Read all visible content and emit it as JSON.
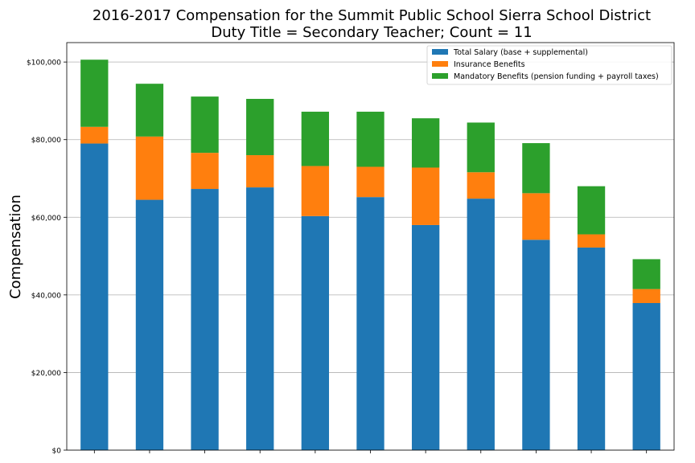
{
  "chart_data": {
    "type": "bar",
    "stacked": true,
    "title_line1": "2016-2017 Compensation for the Summit Public School Sierra School District",
    "title_line2": "Duty Title = Secondary Teacher; Count = 11",
    "ylabel": "Compensation",
    "ylim": [
      0,
      105000
    ],
    "yticks": [
      0,
      20000,
      40000,
      60000,
      80000,
      100000
    ],
    "ytick_labels": [
      "$0",
      "$20,000",
      "$40,000",
      "$60,000",
      "$80,000",
      "$100,000"
    ],
    "grid": "horizontal",
    "legend_position": "top-right",
    "categories": [
      "",
      "",
      "",
      "",
      "",
      "",
      "",
      "",
      "",
      "",
      ""
    ],
    "series": [
      {
        "name": "Total Salary (base + supplemental)",
        "color": "#1f77b4",
        "values": [
          79000,
          64500,
          67300,
          67700,
          60300,
          65200,
          58000,
          64800,
          54200,
          52200,
          37900
        ]
      },
      {
        "name": "Insurance Benefits",
        "color": "#ff7f0e",
        "values": [
          4300,
          16300,
          9300,
          8300,
          12900,
          7800,
          14800,
          6800,
          12000,
          3400,
          3600
        ]
      },
      {
        "name": "Mandatory Benefits (pension funding + payroll taxes)",
        "color": "#2ca02c",
        "values": [
          17300,
          13600,
          14500,
          14500,
          14000,
          14200,
          12700,
          12800,
          12900,
          12400,
          7700
        ]
      }
    ]
  }
}
